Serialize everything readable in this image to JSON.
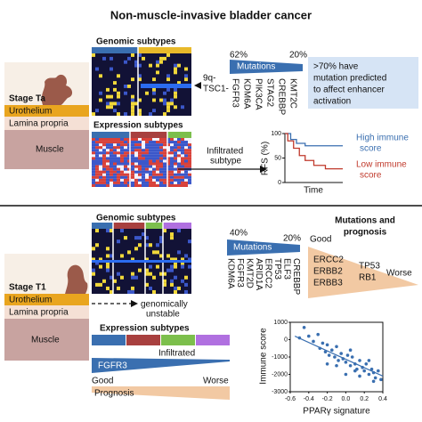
{
  "title": "Non-muscle-invasive bladder cancer",
  "top": {
    "stage": "Stage Ta",
    "layers": [
      "Urothelium",
      "Lamina propria",
      "Muscle"
    ],
    "genomic_title": "Genomic subtypes",
    "alterations": [
      "9q-",
      "TSC1-"
    ],
    "mutations": {
      "label": "Mutations",
      "high": "62%",
      "low": "20%",
      "genes": [
        "FGFR3",
        "KDM6A",
        "PIK3CA",
        "STAG2",
        "CREBBP",
        "KMT2C"
      ]
    },
    "enhancer_note": [
      ">70% have",
      "mutation predicted",
      "to affect enhancer",
      "activation"
    ],
    "expression_title": "Expression subtypes",
    "infiltrated": [
      "Infiltrated",
      "subtype"
    ],
    "km": {
      "ylabel": "RFS (%)",
      "xlabel": "Time",
      "ylim": [
        0,
        100
      ],
      "yticks": [
        0,
        50,
        100
      ],
      "xlim": [
        0,
        10
      ],
      "series": [
        {
          "name": [
            "High immune",
            "score"
          ],
          "color": "#3a6fb0",
          "x": [
            0,
            1,
            2,
            3.5,
            10
          ],
          "y": [
            100,
            88,
            80,
            75,
            75
          ]
        },
        {
          "name": [
            "Low immune",
            "score"
          ],
          "color": "#c0392b",
          "x": [
            0,
            0.5,
            1.5,
            2.5,
            3.5,
            5,
            7,
            10
          ],
          "y": [
            100,
            85,
            70,
            55,
            45,
            35,
            28,
            28
          ]
        }
      ]
    }
  },
  "bottom": {
    "stage": "Stage T1",
    "layers": [
      "Urothelium",
      "Lamina propria",
      "Muscle"
    ],
    "genomic_title": "Genomic subtypes",
    "unstable": [
      "genomically",
      "unstable"
    ],
    "mutations": {
      "label": "Mutations",
      "high": "40%",
      "low": "20%",
      "genes": [
        "KDM6A",
        "FGFR3",
        "KMT2D",
        "ARID1A",
        "ERCC2",
        "TP53",
        "ELF3",
        "CREBBP"
      ]
    },
    "prognosis_title": [
      "Mutations and",
      "prognosis"
    ],
    "prognosis_good": "Good",
    "prognosis_worse": "Worse",
    "good_genes": [
      "ERCC2",
      "ERBB2",
      "ERBB3"
    ],
    "worse_genes": [
      "TP53",
      "RB1"
    ],
    "expression_title": "Expression subtypes",
    "infiltrated": "Infiltrated",
    "fgfr3": "FGFR3",
    "good": "Good",
    "worse": "Worse",
    "prognosis": "Prognosis",
    "scatter": {
      "xlabel": "PPARγ signature",
      "ylabel": "Immune score",
      "xlim": [
        -0.6,
        0.4
      ],
      "xticks": [
        -0.6,
        -0.4,
        -0.2,
        {
          "value": 0,
          "label": "0.0"
        },
        0.2,
        0.4
      ],
      "ylim": [
        -3000,
        1000
      ],
      "yticks": [
        1000,
        0,
        -1000,
        -2000,
        -3000
      ],
      "color": "#3a6fb0",
      "x": [
        -0.45,
        -0.4,
        -0.35,
        -0.3,
        -0.28,
        -0.25,
        -0.22,
        -0.2,
        -0.18,
        -0.15,
        -0.12,
        -0.1,
        -0.08,
        -0.05,
        -0.03,
        0,
        0.02,
        0.05,
        0.07,
        0.1,
        0.12,
        0.15,
        0.18,
        0.2,
        0.22,
        0.25,
        0.28,
        0.3,
        0.32,
        0.35,
        -0.5,
        -0.1,
        0.05,
        0.15,
        0.25,
        -0.2,
        0,
        0.1,
        0.3,
        0.38
      ],
      "y": [
        700,
        200,
        -100,
        300,
        -500,
        -200,
        -700,
        -300,
        -900,
        -600,
        -1000,
        -400,
        -1200,
        -800,
        -1100,
        -1300,
        -900,
        -1500,
        -1000,
        -1400,
        -1700,
        -1200,
        -1600,
        -1800,
        -1400,
        -2000,
        -1700,
        -1900,
        -2200,
        -1800,
        100,
        -1500,
        -600,
        -2100,
        -1200,
        -1400,
        -2000,
        -1800,
        -2400,
        -2300
      ],
      "trend": {
        "x": [
          -0.55,
          0.4
        ],
        "y": [
          200,
          -2100
        ]
      }
    }
  }
}
